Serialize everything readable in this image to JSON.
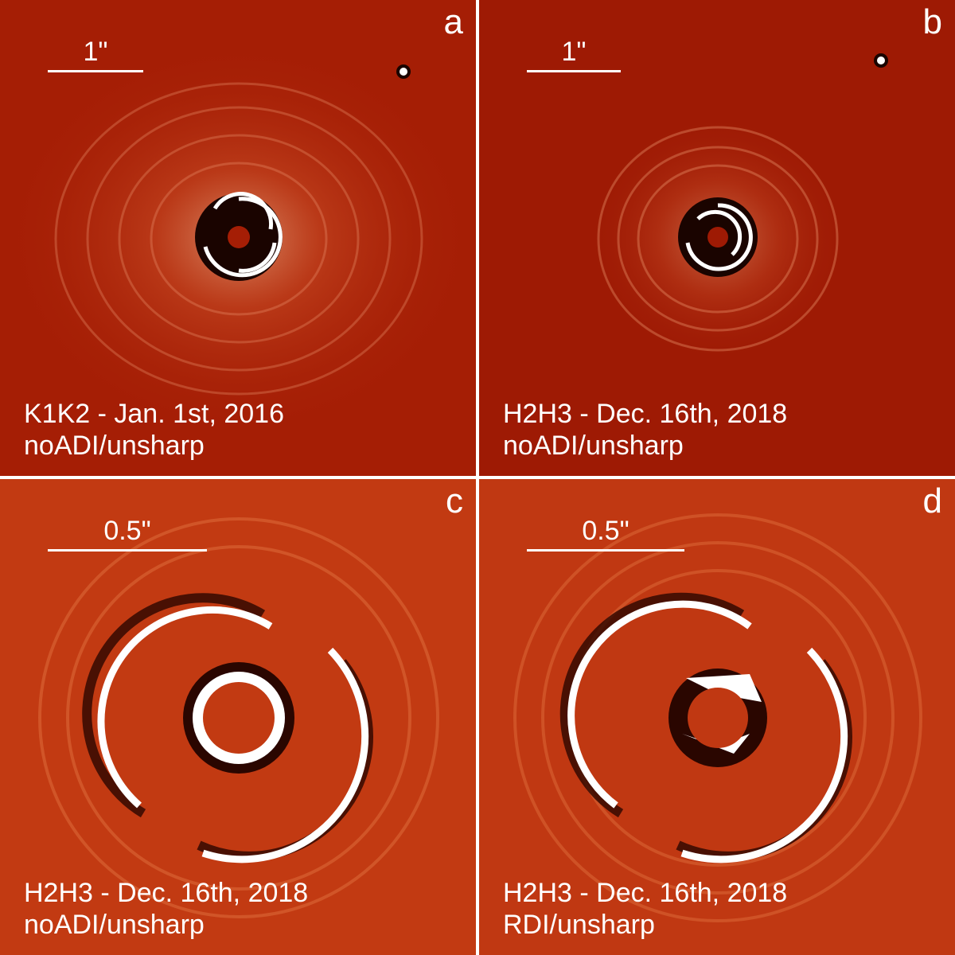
{
  "panels": [
    {
      "letter": "a",
      "scale_label": "1\"",
      "caption_line1": "K1K2 - Jan. 1st, 2016",
      "caption_line2": "noADI/unsharp",
      "background_color": "#a51e05"
    },
    {
      "letter": "b",
      "scale_label": "1\"",
      "caption_line1": "H2H3 - Dec. 16th, 2018",
      "caption_line2": "noADI/unsharp",
      "background_color": "#9e1a04"
    },
    {
      "letter": "c",
      "scale_label": "0.5\"",
      "caption_line1": "H2H3 - Dec. 16th, 2018",
      "caption_line2": "noADI/unsharp",
      "background_color": "#c23a12"
    },
    {
      "letter": "d",
      "scale_label": "0.5\"",
      "caption_line1": "H2H3 - Dec. 16th, 2018",
      "caption_line2": "RDI/unsharp",
      "background_color": "#c03812"
    }
  ]
}
